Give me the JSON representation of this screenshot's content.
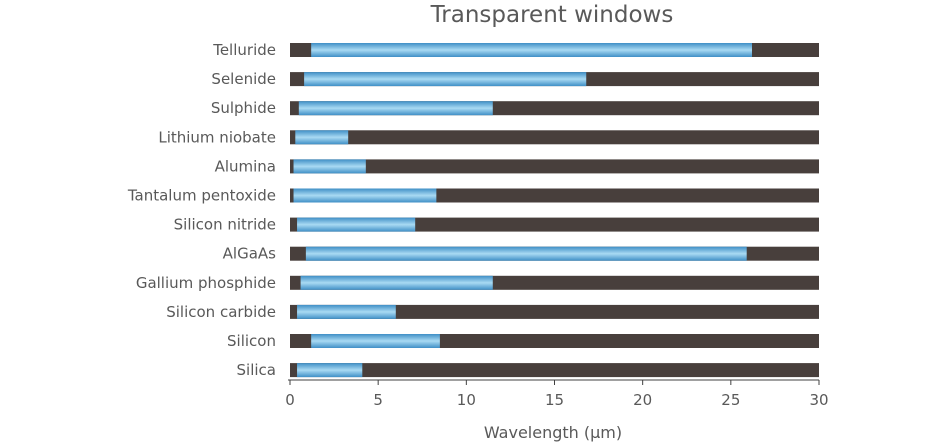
{
  "chart_data": {
    "type": "bar",
    "title": "Transparent windows",
    "xlabel": "Wavelength (μm)",
    "ylabel": "",
    "xlim": [
      0,
      30
    ],
    "x_ticks": [
      "0",
      "5",
      "10",
      "15",
      "20",
      "25",
      "30"
    ],
    "grid": false,
    "legend": "none",
    "categories": [
      "Telluride",
      "Selenide",
      "Sulphide",
      "Lithium niobate",
      "Alumina",
      "Tantalum pentoxide",
      "Silicon nitride",
      "AlGaAs",
      "Gallium phosphide",
      "Silicon carbide",
      "Silicon",
      "Silica"
    ],
    "series": [
      {
        "values": [
          [
            1.2,
            26.2
          ],
          [
            0.8,
            16.8
          ],
          [
            0.5,
            11.5
          ],
          [
            0.3,
            3.3
          ],
          [
            0.2,
            4.3
          ],
          [
            0.2,
            8.3
          ],
          [
            0.4,
            7.1
          ],
          [
            0.9,
            25.9
          ],
          [
            0.6,
            11.5
          ],
          [
            0.4,
            6.0
          ],
          [
            1.2,
            8.5
          ],
          [
            0.4,
            4.1
          ]
        ]
      }
    ],
    "colors": {
      "transparent": "#5aa9d8",
      "opaque": "#483f3c"
    }
  }
}
